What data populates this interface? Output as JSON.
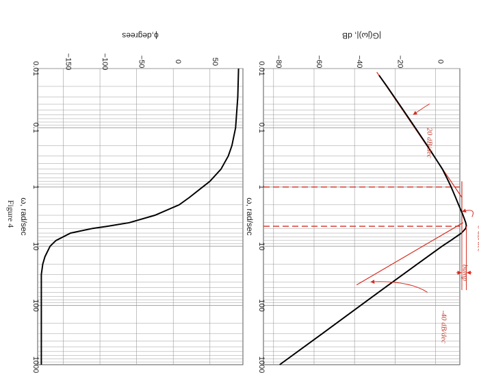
{
  "figure_caption": "Figure 4",
  "colors": {
    "curve": "#000000",
    "annotation": "#d62d20",
    "grid": "#9a9a9a",
    "frame": "#555555"
  },
  "chart_data": [
    {
      "type": "line",
      "name": "magnitude",
      "xlabel": "ω, rad/sec",
      "ylabel": "|G(jω)|, dB",
      "x_scale": "log",
      "xlim": [
        0.01,
        1000
      ],
      "ylim": [
        -85,
        12
      ],
      "x_ticks": [
        0.01,
        0.1,
        1,
        10,
        100,
        1000
      ],
      "x_tick_labels": [
        "0.01",
        "0.1",
        "1",
        "10",
        "100",
        "1000"
      ],
      "y_ticks": [
        -80,
        -60,
        -40,
        -20,
        0
      ],
      "y_tick_labels": [
        "−80",
        "−60",
        "−40",
        "−20",
        "0"
      ],
      "grid": true,
      "series": [
        {
          "role": "exact",
          "x": [
            0.013,
            0.02,
            0.05,
            0.1,
            0.2,
            0.5,
            0.8,
            1.0,
            1.5,
            2.0,
            3.0,
            4.0,
            4.5,
            5.0,
            6.0,
            8.0,
            10,
            20,
            50,
            100,
            300,
            1000
          ],
          "y": [
            -27.9,
            -24,
            -16,
            -10,
            -4.1,
            3.4,
            6.4,
            7.7,
            9.9,
            11.4,
            13.6,
            14.9,
            15.2,
            14.9,
            12.8,
            7.5,
            3.2,
            -9.0,
            -25.0,
            -37.0,
            -56.0,
            -77.0
          ]
        },
        {
          "role": "asymptotes",
          "segments": [
            {
              "x": [
                0.0115,
                1.5
              ],
              "y": [
                -29,
                13
              ]
            },
            {
              "x": [
                0.8,
                5.2
              ],
              "y": [
                13,
                13
              ]
            },
            {
              "x": [
                4.0,
                45
              ],
              "y": [
                13.6,
                -39
              ]
            }
          ]
        }
      ],
      "markers": [
        {
          "kind": "dashed-vertical",
          "x": 1
        },
        {
          "kind": "dashed-vertical",
          "x": 4.6
        }
      ],
      "annotations": [
        {
          "text": "20 dB/dec"
        },
        {
          "text": "0 dB/dec"
        },
        {
          "text": "bump"
        },
        {
          "text": "-40 dB/dec"
        }
      ]
    },
    {
      "type": "line",
      "name": "phase",
      "xlabel": "ω, rad/sec",
      "ylabel": "ϕ,degrees",
      "x_scale": "log",
      "xlim": [
        0.01,
        1000
      ],
      "ylim": [
        -185,
        95
      ],
      "x_ticks": [
        0.01,
        0.1,
        1,
        10,
        100,
        1000
      ],
      "x_tick_labels": [
        "0.01",
        "0.1",
        "1",
        "10",
        "100",
        "1000"
      ],
      "y_ticks": [
        -150,
        -100,
        -50,
        0,
        50
      ],
      "y_tick_labels": [
        "−150",
        "−100",
        "−50",
        "0",
        "50"
      ],
      "grid": true,
      "series": [
        {
          "role": "phase",
          "x": [
            0.01,
            0.03,
            0.1,
            0.2,
            0.3,
            0.5,
            0.8,
            1,
            1.5,
            2,
            3,
            4,
            4.6,
            5,
            6,
            8,
            10,
            15,
            20,
            30,
            50,
            100,
            200,
            1000
          ],
          "y": [
            89,
            88,
            85,
            80,
            75,
            65,
            50,
            40,
            22,
            8,
            -25,
            -60,
            -90,
            -110,
            -140,
            -160,
            -168,
            -175,
            -178,
            -180,
            -180,
            -180,
            -180,
            -180
          ]
        }
      ]
    }
  ]
}
